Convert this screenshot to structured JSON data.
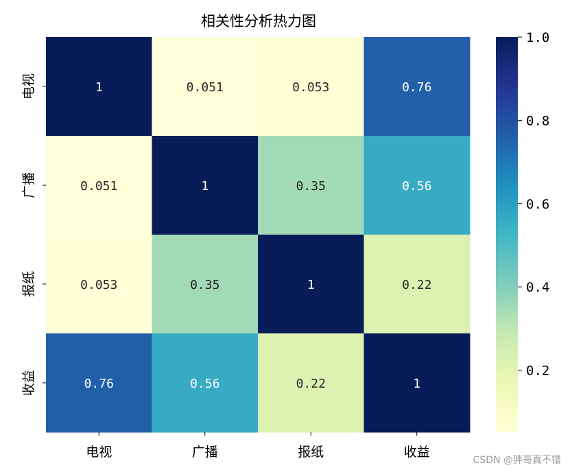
{
  "chart_data": {
    "type": "heatmap",
    "title": "相关性分析热力图",
    "xlabel": "",
    "ylabel": "",
    "x_categories": [
      "电视",
      "广播",
      "报纸",
      "收益"
    ],
    "y_categories": [
      "电视",
      "广播",
      "报纸",
      "收益"
    ],
    "matrix": [
      [
        1,
        0.051,
        0.053,
        0.76
      ],
      [
        0.051,
        1,
        0.35,
        0.56
      ],
      [
        0.053,
        0.35,
        1,
        0.22
      ],
      [
        0.76,
        0.56,
        0.22,
        1
      ]
    ],
    "annotations": [
      [
        "1",
        "0.051",
        "0.053",
        "0.76"
      ],
      [
        "0.051",
        "1",
        "0.35",
        "0.56"
      ],
      [
        "0.053",
        "0.35",
        "1",
        "0.22"
      ],
      [
        "0.76",
        "0.56",
        "0.22",
        "1"
      ]
    ],
    "colormap": "YlGnBu",
    "colorbar": {
      "range": [
        0.051,
        1.0
      ],
      "ticks": [
        0.2,
        0.4,
        0.6,
        0.8,
        1.0
      ],
      "tick_labels": [
        "0.2",
        "0.4",
        "0.6",
        "0.8",
        "1.0"
      ]
    },
    "grid": false,
    "legend": "colorbar-right"
  },
  "watermark": "CSDN @胖哥真不错"
}
